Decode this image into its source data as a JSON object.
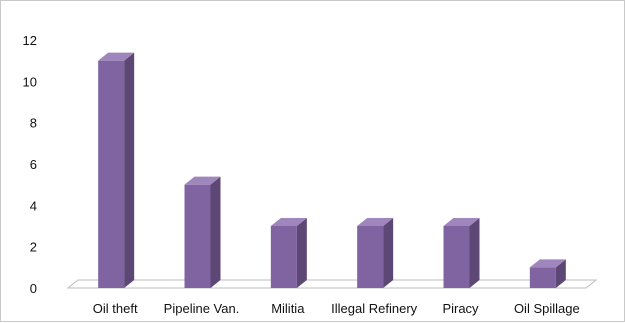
{
  "chart_data": {
    "type": "bar",
    "title": "",
    "xlabel": "",
    "ylabel": "",
    "categories": [
      "Oil theft",
      "Pipeline Van.",
      "Militia",
      "Illegal Refinery",
      "Piracy",
      "Oil Spillage"
    ],
    "values": [
      11,
      5,
      3,
      3,
      3,
      1
    ],
    "ylim": [
      0,
      12
    ],
    "yticks": [
      0,
      2,
      4,
      6,
      8,
      10,
      12
    ],
    "grid": false,
    "legend": "none",
    "style": "3d-column"
  },
  "colors": {
    "bar_front": "#8064a2",
    "bar_side": "#5c4775",
    "bar_top": "#9f86bd",
    "floor": "#bdbdbd"
  }
}
